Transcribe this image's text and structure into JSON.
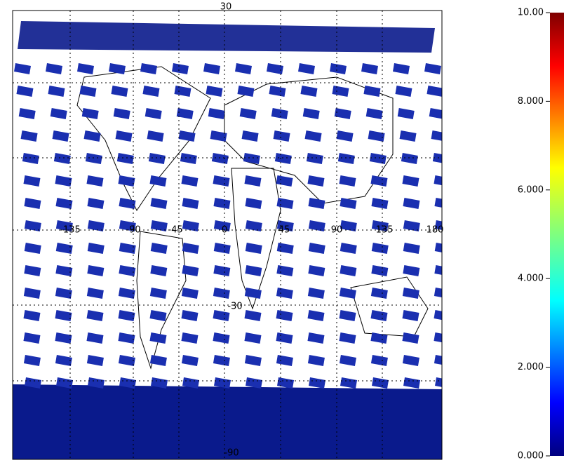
{
  "map": {
    "lat_labels": [
      "30",
      "-30",
      "-90"
    ],
    "lon_labels": [
      "-135",
      "-90",
      "-45",
      "0",
      "45",
      "90",
      "135",
      "180"
    ]
  },
  "colorbar": {
    "range": [
      0,
      10
    ],
    "ticks": [
      {
        "value": 0,
        "label": "0.000"
      },
      {
        "value": 2,
        "label": "2.000"
      },
      {
        "value": 4,
        "label": "4.000"
      },
      {
        "value": 6,
        "label": "6.000"
      },
      {
        "value": 8,
        "label": "8.000"
      },
      {
        "value": 10,
        "label": "10.00"
      }
    ]
  }
}
